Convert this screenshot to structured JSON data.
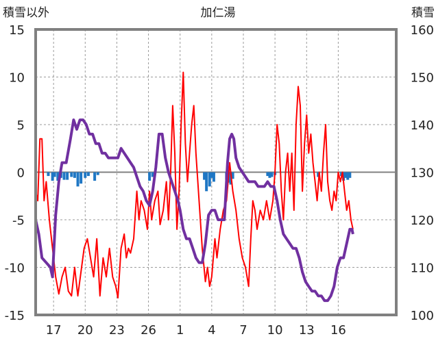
{
  "chart_data": {
    "type": "line",
    "title": "加仁湯",
    "left_axis_title": "積雪以外",
    "right_axis_title": "積雪",
    "left_ylim": [
      -15,
      15
    ],
    "right_ylim": [
      100,
      160
    ],
    "left_ticks": [
      "15",
      "10",
      "5",
      "0",
      "-5",
      "-10",
      "-15"
    ],
    "right_ticks": [
      "160",
      "150",
      "140",
      "130",
      "120",
      "110",
      "100"
    ],
    "x_range": [
      15.3,
      49.5
    ],
    "x_ticks": [
      {
        "pos": 17,
        "label": "17"
      },
      {
        "pos": 20,
        "label": "20"
      },
      {
        "pos": 23,
        "label": "23"
      },
      {
        "pos": 26,
        "label": "26"
      },
      {
        "pos": 29,
        "label": "1"
      },
      {
        "pos": 32,
        "label": "4"
      },
      {
        "pos": 35,
        "label": "7"
      },
      {
        "pos": 38,
        "label": "10"
      },
      {
        "pos": 41,
        "label": "13"
      },
      {
        "pos": 44,
        "label": "16"
      }
    ],
    "grid": true,
    "colors": {
      "temperature": "#ff0000",
      "snow_depth": "#7030a0",
      "precipitation": "#1f77c4",
      "frame": "#808080"
    },
    "temperature": [
      [
        15.3,
        -2
      ],
      [
        15.5,
        -3
      ],
      [
        15.7,
        3.5
      ],
      [
        15.9,
        3.5
      ],
      [
        16.1,
        -3
      ],
      [
        16.3,
        -1
      ],
      [
        16.6,
        -5
      ],
      [
        16.9,
        -8
      ],
      [
        17.2,
        -11
      ],
      [
        17.5,
        -12.8
      ],
      [
        17.8,
        -11
      ],
      [
        18.1,
        -10
      ],
      [
        18.4,
        -12.5
      ],
      [
        18.7,
        -13
      ],
      [
        19.0,
        -10
      ],
      [
        19.3,
        -13
      ],
      [
        19.6,
        -10.5
      ],
      [
        19.9,
        -8
      ],
      [
        20.2,
        -7
      ],
      [
        20.5,
        -9
      ],
      [
        20.8,
        -11
      ],
      [
        21.1,
        -7
      ],
      [
        21.4,
        -13
      ],
      [
        21.7,
        -9
      ],
      [
        22.0,
        -11
      ],
      [
        22.3,
        -8
      ],
      [
        22.6,
        -11
      ],
      [
        22.9,
        -12
      ],
      [
        23.1,
        -13.2
      ],
      [
        23.4,
        -8
      ],
      [
        23.7,
        -6.5
      ],
      [
        23.9,
        -9
      ],
      [
        24.1,
        -8
      ],
      [
        24.3,
        -8.5
      ],
      [
        24.6,
        -7
      ],
      [
        24.9,
        -2
      ],
      [
        25.1,
        -5
      ],
      [
        25.3,
        -3
      ],
      [
        25.6,
        -4
      ],
      [
        25.9,
        -6
      ],
      [
        26.1,
        -2
      ],
      [
        26.3,
        -5
      ],
      [
        26.6,
        -3
      ],
      [
        26.9,
        -2
      ],
      [
        27.1,
        -5.5
      ],
      [
        27.4,
        -4
      ],
      [
        27.7,
        -1
      ],
      [
        27.9,
        -5
      ],
      [
        28.1,
        0
      ],
      [
        28.3,
        7
      ],
      [
        28.5,
        2
      ],
      [
        28.7,
        -6
      ],
      [
        28.9,
        -2
      ],
      [
        29.1,
        5
      ],
      [
        29.3,
        10.5
      ],
      [
        29.5,
        3
      ],
      [
        29.7,
        -1
      ],
      [
        29.9,
        2
      ],
      [
        30.1,
        5
      ],
      [
        30.3,
        7
      ],
      [
        30.5,
        2
      ],
      [
        30.8,
        -3
      ],
      [
        31.1,
        -8
      ],
      [
        31.4,
        -11.5
      ],
      [
        31.6,
        -10
      ],
      [
        31.8,
        -12
      ],
      [
        32.0,
        -11
      ],
      [
        32.3,
        -7
      ],
      [
        32.5,
        -9
      ],
      [
        32.8,
        -6
      ],
      [
        33.1,
        -4
      ],
      [
        33.4,
        -3
      ],
      [
        33.7,
        1
      ],
      [
        34.0,
        -2
      ],
      [
        34.3,
        -4
      ],
      [
        34.6,
        -7
      ],
      [
        34.9,
        -9
      ],
      [
        35.2,
        -10
      ],
      [
        35.5,
        -12
      ],
      [
        35.7,
        -7
      ],
      [
        35.9,
        -3
      ],
      [
        36.1,
        -4
      ],
      [
        36.3,
        -6
      ],
      [
        36.6,
        -4
      ],
      [
        36.9,
        -5
      ],
      [
        37.2,
        -3
      ],
      [
        37.5,
        -5
      ],
      [
        37.8,
        -3
      ],
      [
        38.0,
        0
      ],
      [
        38.2,
        5
      ],
      [
        38.4,
        3
      ],
      [
        38.6,
        -2
      ],
      [
        38.8,
        -5
      ],
      [
        39.0,
        0
      ],
      [
        39.2,
        2
      ],
      [
        39.4,
        -2
      ],
      [
        39.6,
        2
      ],
      [
        39.8,
        -4
      ],
      [
        40.0,
        5
      ],
      [
        40.2,
        9
      ],
      [
        40.4,
        7
      ],
      [
        40.6,
        -2
      ],
      [
        40.8,
        3
      ],
      [
        41.0,
        6
      ],
      [
        41.2,
        2
      ],
      [
        41.4,
        4
      ],
      [
        41.6,
        1
      ],
      [
        41.8,
        -1
      ],
      [
        42.0,
        -3
      ],
      [
        42.2,
        0
      ],
      [
        42.4,
        -2
      ],
      [
        42.6,
        2
      ],
      [
        42.8,
        5
      ],
      [
        43.0,
        -1
      ],
      [
        43.2,
        -3
      ],
      [
        43.4,
        -4
      ],
      [
        43.6,
        -2
      ],
      [
        43.8,
        -3
      ],
      [
        44.0,
        0
      ],
      [
        44.2,
        -1
      ],
      [
        44.4,
        0
      ],
      [
        44.6,
        -2
      ],
      [
        44.8,
        -4
      ],
      [
        45.0,
        -3
      ],
      [
        45.2,
        -5
      ],
      [
        45.4,
        -6
      ]
    ],
    "snow_depth": [
      [
        15.3,
        120
      ],
      [
        15.6,
        117
      ],
      [
        15.9,
        112
      ],
      [
        16.3,
        111
      ],
      [
        16.7,
        110
      ],
      [
        16.9,
        108
      ],
      [
        17.2,
        121
      ],
      [
        17.5,
        128
      ],
      [
        17.8,
        132
      ],
      [
        18.2,
        132
      ],
      [
        18.6,
        137
      ],
      [
        18.9,
        141
      ],
      [
        19.2,
        139
      ],
      [
        19.5,
        141
      ],
      [
        19.8,
        141
      ],
      [
        20.1,
        140
      ],
      [
        20.4,
        138
      ],
      [
        20.7,
        138
      ],
      [
        21.0,
        136
      ],
      [
        21.3,
        136
      ],
      [
        21.6,
        134
      ],
      [
        21.9,
        134
      ],
      [
        22.2,
        133
      ],
      [
        22.5,
        133
      ],
      [
        22.8,
        133
      ],
      [
        23.1,
        133
      ],
      [
        23.4,
        135
      ],
      [
        23.7,
        134
      ],
      [
        24.0,
        133
      ],
      [
        24.3,
        132
      ],
      [
        24.6,
        131
      ],
      [
        24.9,
        129
      ],
      [
        25.2,
        127
      ],
      [
        25.5,
        126
      ],
      [
        25.8,
        124
      ],
      [
        26.1,
        123
      ],
      [
        26.4,
        126
      ],
      [
        26.7,
        131
      ],
      [
        27.0,
        138
      ],
      [
        27.3,
        138
      ],
      [
        27.6,
        133
      ],
      [
        27.9,
        130
      ],
      [
        28.2,
        128
      ],
      [
        28.5,
        126
      ],
      [
        28.8,
        124
      ],
      [
        29.0,
        122
      ],
      [
        29.3,
        118
      ],
      [
        29.6,
        116
      ],
      [
        29.9,
        116
      ],
      [
        30.2,
        114
      ],
      [
        30.5,
        112
      ],
      [
        30.8,
        111
      ],
      [
        31.1,
        111
      ],
      [
        31.4,
        115
      ],
      [
        31.7,
        121
      ],
      [
        32.0,
        122
      ],
      [
        32.3,
        122
      ],
      [
        32.6,
        120
      ],
      [
        32.9,
        120
      ],
      [
        33.2,
        120
      ],
      [
        33.5,
        132
      ],
      [
        33.7,
        137
      ],
      [
        33.9,
        138
      ],
      [
        34.1,
        137
      ],
      [
        34.3,
        133
      ],
      [
        34.6,
        131
      ],
      [
        34.9,
        130
      ],
      [
        35.2,
        129
      ],
      [
        35.5,
        128
      ],
      [
        35.8,
        128
      ],
      [
        36.1,
        128
      ],
      [
        36.4,
        127
      ],
      [
        36.7,
        127
      ],
      [
        37.0,
        127
      ],
      [
        37.3,
        128
      ],
      [
        37.6,
        127
      ],
      [
        37.9,
        127
      ],
      [
        38.2,
        124
      ],
      [
        38.5,
        120
      ],
      [
        38.8,
        117
      ],
      [
        39.1,
        116
      ],
      [
        39.4,
        115
      ],
      [
        39.7,
        114
      ],
      [
        40.0,
        114
      ],
      [
        40.3,
        112
      ],
      [
        40.6,
        109
      ],
      [
        40.9,
        107
      ],
      [
        41.2,
        106
      ],
      [
        41.5,
        105
      ],
      [
        41.8,
        105
      ],
      [
        42.1,
        104
      ],
      [
        42.4,
        104
      ],
      [
        42.7,
        103
      ],
      [
        43.0,
        103
      ],
      [
        43.3,
        104
      ],
      [
        43.6,
        106
      ],
      [
        43.9,
        110
      ],
      [
        44.2,
        112
      ],
      [
        44.5,
        112
      ],
      [
        44.8,
        115
      ],
      [
        45.1,
        118
      ],
      [
        45.3,
        118
      ],
      [
        45.4,
        117
      ]
    ],
    "precipitation": [
      [
        16.5,
        -0.4
      ],
      [
        16.9,
        -0.9
      ],
      [
        17.1,
        -0.5
      ],
      [
        17.4,
        -0.9
      ],
      [
        17.7,
        -0.6
      ],
      [
        18.0,
        -0.8
      ],
      [
        18.3,
        -0.8
      ],
      [
        18.7,
        -0.5
      ],
      [
        19.0,
        -0.6
      ],
      [
        19.3,
        -1.5
      ],
      [
        19.6,
        -1.2
      ],
      [
        20.0,
        -0.6
      ],
      [
        20.3,
        -0.4
      ],
      [
        20.9,
        -0.9
      ],
      [
        21.2,
        -0.3
      ],
      [
        26.1,
        -0.9
      ],
      [
        26.4,
        -0.5
      ],
      [
        31.3,
        -0.8
      ],
      [
        31.5,
        -2.0
      ],
      [
        31.8,
        -1.5
      ],
      [
        32.0,
        -0.6
      ],
      [
        32.2,
        -1.0
      ],
      [
        33.4,
        -0.8
      ],
      [
        33.6,
        -1.1
      ],
      [
        33.8,
        -1.3
      ],
      [
        34.0,
        -0.7
      ],
      [
        37.3,
        -0.4
      ],
      [
        37.5,
        -0.6
      ],
      [
        37.7,
        -0.5
      ],
      [
        38.0,
        -0.3
      ],
      [
        42.1,
        -0.5
      ],
      [
        44.3,
        -0.4
      ],
      [
        44.5,
        -0.9
      ],
      [
        44.7,
        -0.6
      ],
      [
        44.9,
        -0.8
      ],
      [
        45.1,
        -0.6
      ]
    ]
  }
}
